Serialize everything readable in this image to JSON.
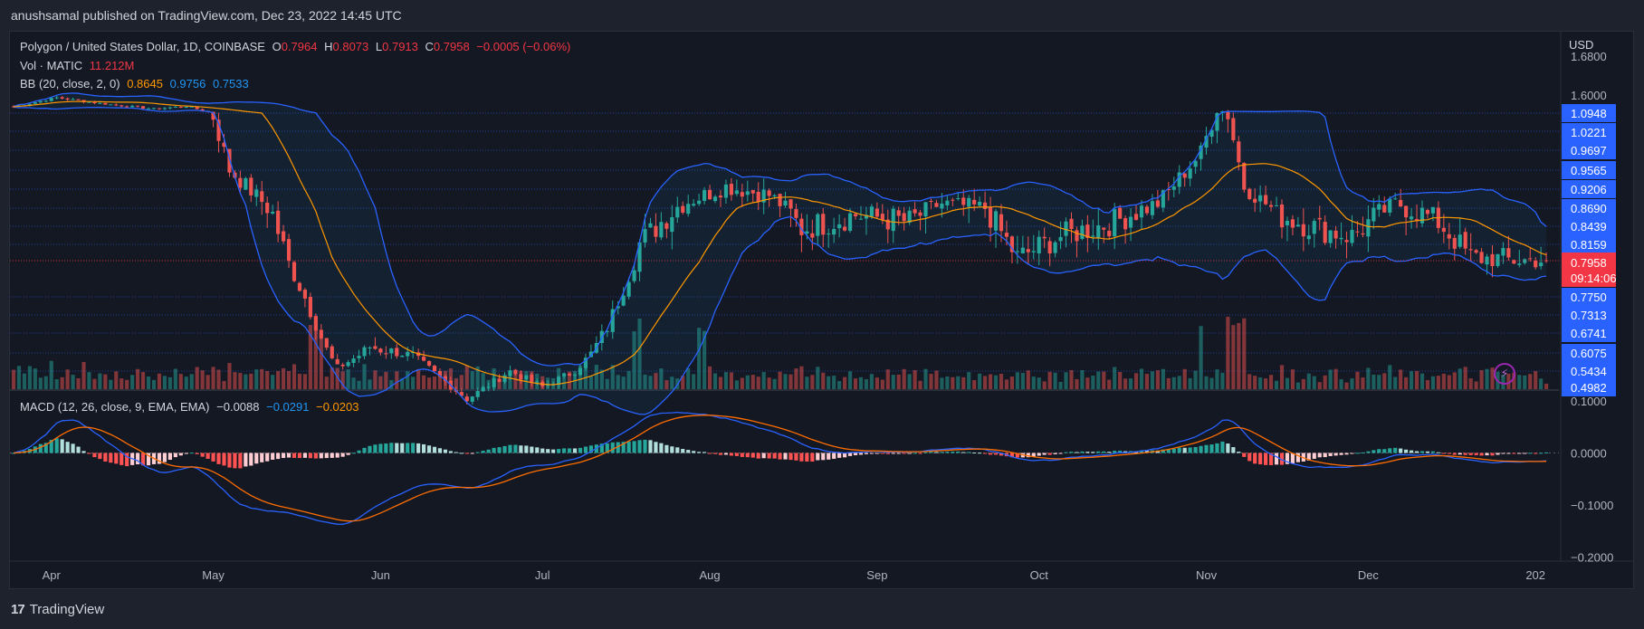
{
  "header": {
    "published": "anushsamal published on TradingView.com, Dec 23, 2022 14:45 UTC"
  },
  "legend": {
    "symbol": "Polygon / United States Dollar, 1D, COINBASE",
    "o_label": "O",
    "o": "0.7964",
    "h_label": "H",
    "h": "0.8073",
    "l_label": "L",
    "l": "0.7913",
    "c_label": "C",
    "c": "0.7958",
    "change": "−0.0005 (−0.06%)",
    "vol_label": "Vol · MATIC",
    "vol": "11.212M",
    "bb_label": "BB (20, close, 2, 0)",
    "bb_mid": "0.8645",
    "bb_up": "0.9756",
    "bb_low": "0.7533",
    "macd_label": "MACD (12, 26, close, 9, EMA, EMA)",
    "macd_hist": "−0.0088",
    "macd": "−0.0291",
    "macd_signal": "−0.0203"
  },
  "price_axis": {
    "currency": "USD",
    "plain_ticks": [
      "1.6000",
      "1.6800"
    ],
    "boxed_ticks": [
      "1.0948",
      "1.0221",
      "0.9697",
      "0.9565",
      "0.9206",
      "0.8690",
      "0.8439",
      "0.8159",
      "0.7750",
      "0.7313",
      "0.6741",
      "0.6075",
      "0.5434",
      "0.4982"
    ],
    "last_price": "0.7958",
    "countdown": "09:14:06"
  },
  "macd_axis": {
    "ticks": [
      "0.1000",
      "0.0000",
      "−0.1000",
      "−0.2000"
    ]
  },
  "time_axis": {
    "labels": [
      "Apr",
      "May",
      "Jun",
      "Jul",
      "Aug",
      "Sep",
      "Oct",
      "Nov",
      "Dec",
      "202"
    ]
  },
  "footer": {
    "brand": "TradingView",
    "logo": "17"
  },
  "icons": {
    "replay": "lightning-icon"
  },
  "colors": {
    "up": "#26a69a",
    "down": "#ef5350",
    "bb": "#2962ff",
    "basis": "#ff9800",
    "bg": "#141823",
    "fill": "rgba(33,150,243,0.07)"
  },
  "chart_data": {
    "type": "candlestick",
    "symbol": "Polygon / United States Dollar",
    "interval": "1D",
    "exchange": "COINBASE",
    "last": {
      "open": 0.7964,
      "high": 0.8073,
      "low": 0.7913,
      "close": 0.7958,
      "change": -0.0005,
      "change_pct": -0.06
    },
    "months": [
      "Apr",
      "May",
      "Jun",
      "Jul",
      "Aug",
      "Sep",
      "Oct",
      "Nov",
      "Dec",
      "202"
    ],
    "month_day_index": [
      7,
      37,
      68,
      98,
      129,
      160,
      190,
      221,
      251,
      282
    ],
    "close_keypoints": [
      [
        0,
        1.28
      ],
      [
        8,
        1.55
      ],
      [
        16,
        1.38
      ],
      [
        26,
        1.22
      ],
      [
        32,
        1.3
      ],
      [
        40,
        0.96
      ],
      [
        48,
        0.86
      ],
      [
        54,
        0.72
      ],
      [
        60,
        0.56
      ],
      [
        66,
        0.62
      ],
      [
        74,
        0.6
      ],
      [
        84,
        0.46
      ],
      [
        92,
        0.55
      ],
      [
        98,
        0.5
      ],
      [
        104,
        0.55
      ],
      [
        110,
        0.66
      ],
      [
        116,
        0.82
      ],
      [
        124,
        0.88
      ],
      [
        132,
        0.92
      ],
      [
        140,
        0.9
      ],
      [
        146,
        0.84
      ],
      [
        156,
        0.86
      ],
      [
        166,
        0.85
      ],
      [
        172,
        0.88
      ],
      [
        180,
        0.87
      ],
      [
        186,
        0.8
      ],
      [
        194,
        0.83
      ],
      [
        204,
        0.85
      ],
      [
        212,
        0.88
      ],
      [
        220,
        1.0
      ],
      [
        224,
        1.15
      ],
      [
        228,
        0.92
      ],
      [
        234,
        0.86
      ],
      [
        242,
        0.84
      ],
      [
        248,
        0.83
      ],
      [
        256,
        0.88
      ],
      [
        264,
        0.85
      ],
      [
        270,
        0.8
      ],
      [
        278,
        0.7958
      ]
    ],
    "volume_unit": "MATIC",
    "last_volume": "11.212M",
    "bollinger": {
      "length": 20,
      "source": "close",
      "stddev": 2,
      "offset": 0,
      "basis": 0.8645,
      "upper": 0.9756,
      "lower": 0.7533
    },
    "macd": {
      "fast": 12,
      "slow": 26,
      "signal": 9,
      "histogram": -0.0088,
      "macd": -0.0291,
      "signal_value": -0.0203,
      "ylim": [
        -0.2,
        0.1
      ]
    }
  }
}
